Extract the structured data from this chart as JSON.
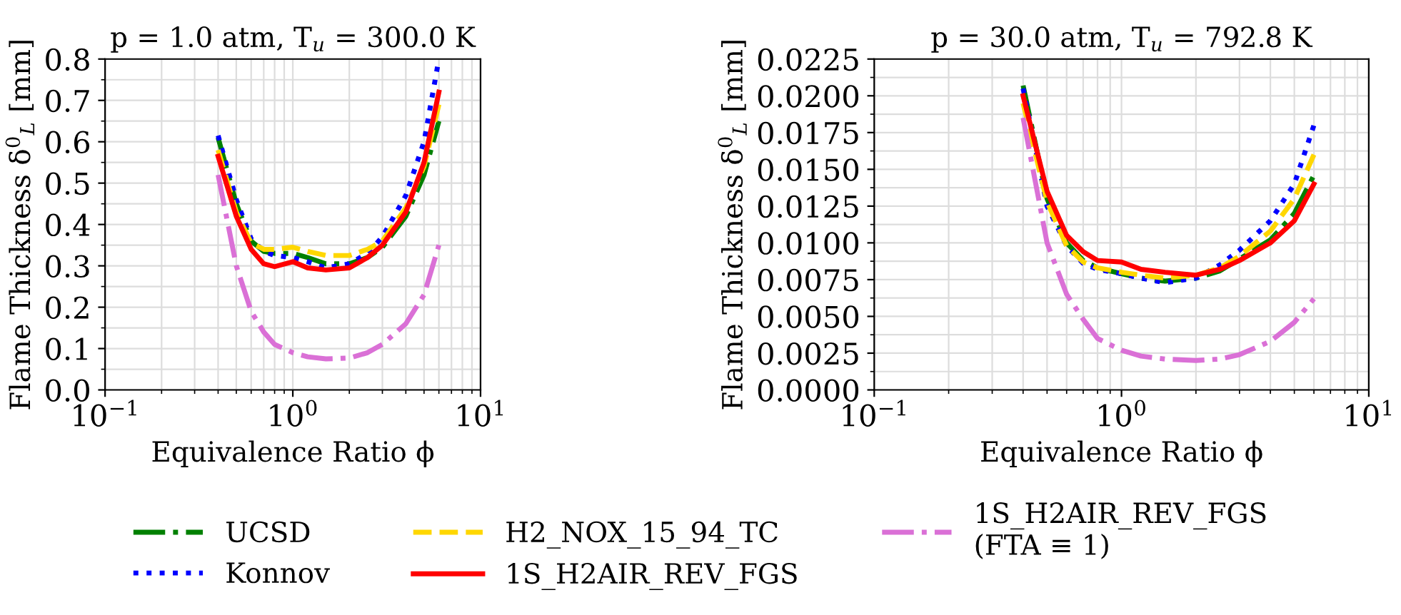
{
  "chart_data": [
    {
      "type": "line",
      "title": "p = 1.0 atm, T$_{u}$ = 300.0 K",
      "xlabel": "Equivalence Ratio ϕ",
      "ylabel": "Flame Thickness δ$^{0}$$_{L}$ [mm]",
      "log": "x",
      "grid": true,
      "legend": "bottom",
      "xlim": [
        0.1,
        10
      ],
      "xticks": [
        {
          "value": 0.1,
          "label": "10$^{−1}$"
        },
        {
          "value": 1,
          "label": "10$^{0}$"
        },
        {
          "value": 10,
          "label": "10$^{1}$"
        }
      ],
      "ylim": [
        0.0,
        0.8
      ],
      "yticks": [
        {
          "value": 0.0,
          "label": "0.0"
        },
        0.1,
        0.2,
        0.3,
        0.4,
        0.5,
        0.6,
        0.7,
        0.8
      ],
      "x": [
        0.4,
        0.5,
        0.6,
        0.7,
        0.8,
        1.0,
        1.2,
        1.5,
        2,
        2.5,
        3,
        4,
        5,
        6
      ],
      "series": [
        {
          "name": "UCSD",
          "color": "#008000",
          "line_style": "dashdot",
          "values": [
            0.61,
            0.45,
            0.36,
            0.335,
            0.33,
            0.33,
            0.32,
            0.305,
            0.305,
            0.32,
            0.345,
            0.42,
            0.52,
            0.65
          ]
        },
        {
          "name": "Konnov",
          "color": "#0000ff",
          "line_style": "dotted",
          "values": [
            0.615,
            0.46,
            0.365,
            0.335,
            0.325,
            0.32,
            0.31,
            0.295,
            0.305,
            0.33,
            0.37,
            0.47,
            0.6,
            0.8
          ]
        },
        {
          "name": "H2_NOX_15_94_TC",
          "color": "#ffd700",
          "line_style": "dashed",
          "values": [
            0.58,
            0.43,
            0.355,
            0.34,
            0.34,
            0.345,
            0.335,
            0.325,
            0.325,
            0.34,
            0.36,
            0.44,
            0.54,
            0.69
          ]
        },
        {
          "name": "1S_H2AIR_REV_FGS",
          "color": "#ff0000",
          "line_style": "solid",
          "values": [
            0.565,
            0.42,
            0.34,
            0.305,
            0.298,
            0.31,
            0.295,
            0.29,
            0.295,
            0.32,
            0.35,
            0.43,
            0.55,
            0.72
          ]
        },
        {
          "name": "1S_H2AIR_REV_FGS\n(FTA ≡ 1)",
          "color": "#da70d6",
          "line_style": "dashdot",
          "values": [
            0.52,
            0.3,
            0.19,
            0.14,
            0.11,
            0.09,
            0.08,
            0.075,
            0.077,
            0.09,
            0.11,
            0.16,
            0.23,
            0.35
          ]
        }
      ]
    },
    {
      "type": "line",
      "title": "p = 30.0 atm, T$_{u}$ = 792.8 K",
      "xlabel": "Equivalence Ratio ϕ",
      "ylabel": "Flame Thickness δ$^{0}$$_{L}$ [mm]",
      "log": "x",
      "grid": true,
      "xlim": [
        0.1,
        10
      ],
      "xticks": [
        {
          "value": 0.1,
          "label": "10$^{−1}$"
        },
        {
          "value": 1,
          "label": "10$^{0}$"
        },
        {
          "value": 10,
          "label": "10$^{1}$"
        }
      ],
      "ylim": [
        0.0,
        0.0225
      ],
      "yticks": [
        {
          "value": 0.0,
          "label": "0.0000"
        },
        {
          "value": 0.0025,
          "label": "0.0025"
        },
        {
          "value": 0.005,
          "label": "0.0050"
        },
        {
          "value": 0.0075,
          "label": "0.0075"
        },
        {
          "value": 0.01,
          "label": "0.0100"
        },
        {
          "value": 0.0125,
          "label": "0.0125"
        },
        {
          "value": 0.015,
          "label": "0.0150"
        },
        {
          "value": 0.0175,
          "label": "0.0175"
        },
        {
          "value": 0.02,
          "label": "0.0200"
        },
        {
          "value": 0.0225,
          "label": "0.0225"
        }
      ],
      "x": [
        0.4,
        0.5,
        0.6,
        0.7,
        0.8,
        1.0,
        1.2,
        1.5,
        2,
        2.5,
        3,
        4,
        5,
        6
      ],
      "series": [
        {
          "color": "#008000",
          "line_style": "dashdot",
          "values": [
            0.0207,
            0.013,
            0.01,
            0.0088,
            0.0083,
            0.0079,
            0.0076,
            0.0074,
            0.0076,
            0.0081,
            0.0089,
            0.0102,
            0.012,
            0.0146
          ]
        },
        {
          "color": "#0000ff",
          "line_style": "dotted",
          "values": [
            0.0205,
            0.0125,
            0.0098,
            0.0086,
            0.0082,
            0.0079,
            0.0076,
            0.0073,
            0.0076,
            0.0085,
            0.0095,
            0.0115,
            0.014,
            0.018
          ]
        },
        {
          "color": "#ffd700",
          "line_style": "dashed",
          "values": [
            0.0195,
            0.0128,
            0.0098,
            0.0087,
            0.0083,
            0.008,
            0.0078,
            0.0076,
            0.0078,
            0.0083,
            0.0091,
            0.0108,
            0.013,
            0.016
          ]
        },
        {
          "color": "#ff0000",
          "line_style": "solid",
          "values": [
            0.02,
            0.0135,
            0.0105,
            0.0094,
            0.0088,
            0.0087,
            0.0082,
            0.008,
            0.0078,
            0.0082,
            0.0088,
            0.01,
            0.0115,
            0.014
          ]
        },
        {
          "color": "#da70d6",
          "line_style": "dashdot",
          "values": [
            0.0185,
            0.01,
            0.0065,
            0.0048,
            0.0035,
            0.0027,
            0.0023,
            0.0021,
            0.002,
            0.0021,
            0.0024,
            0.0033,
            0.0046,
            0.0062
          ]
        }
      ]
    }
  ]
}
